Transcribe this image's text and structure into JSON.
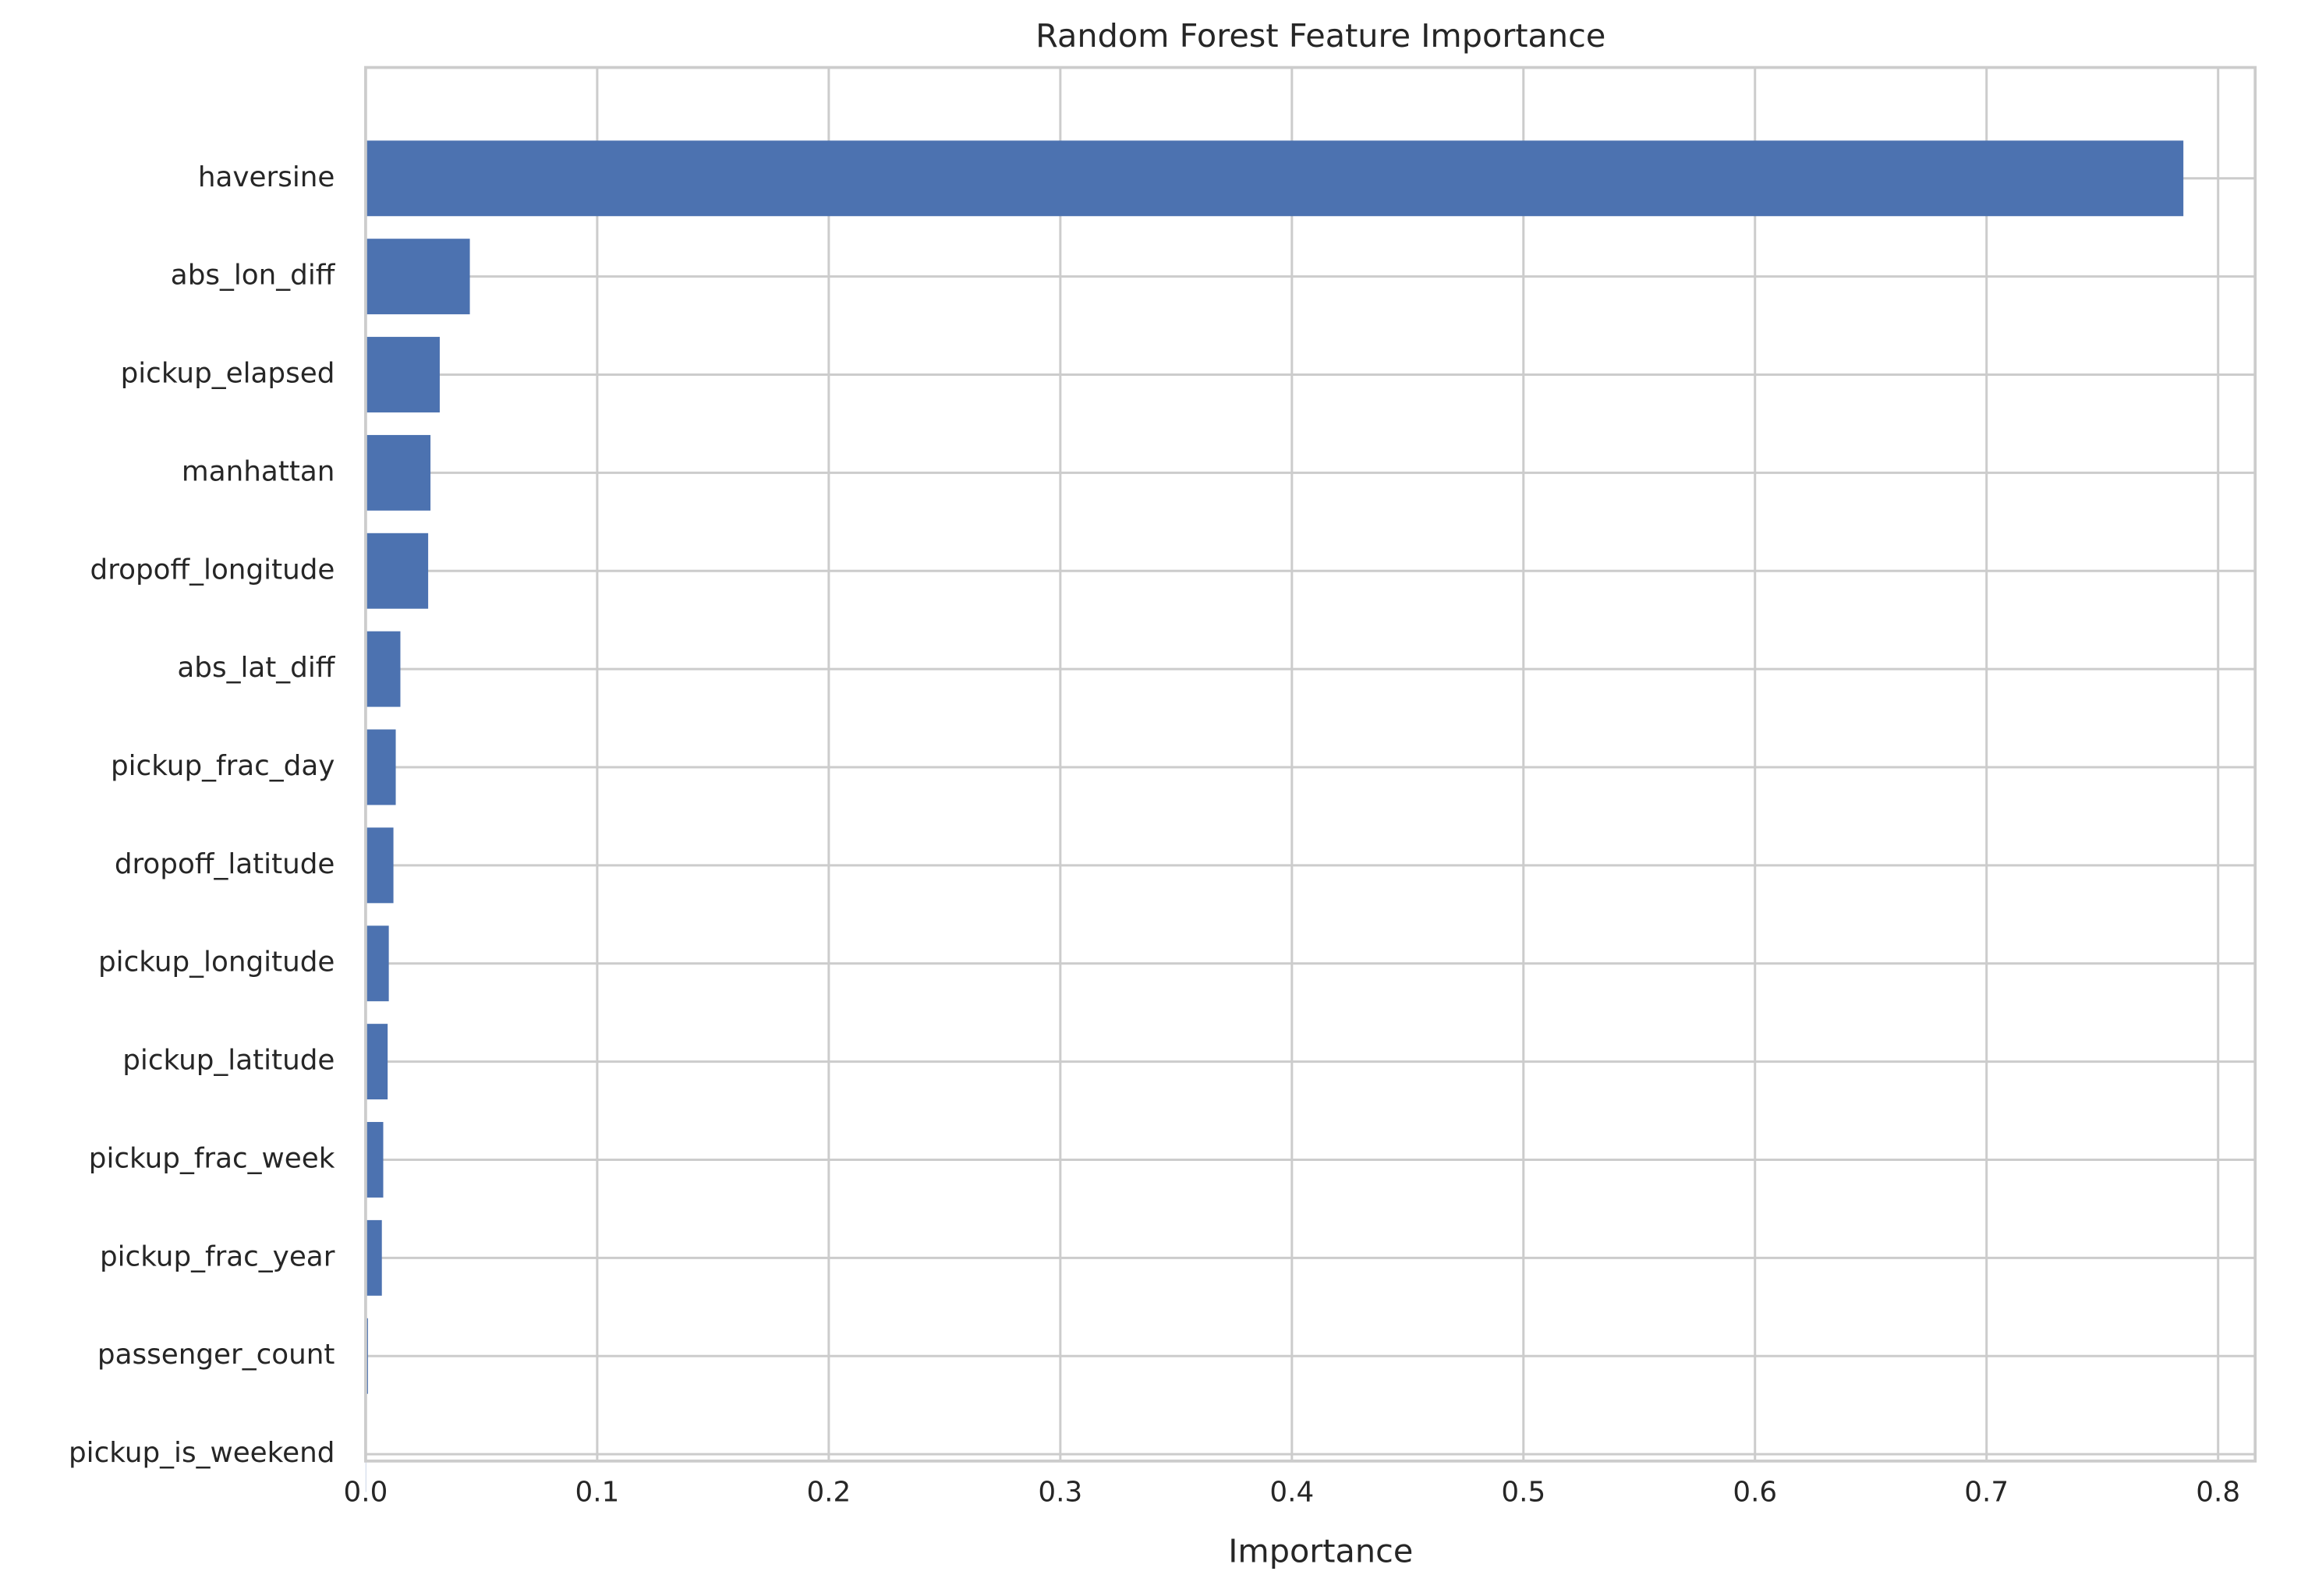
{
  "chart_data": {
    "type": "barh",
    "title": "Random Forest Feature Importance",
    "x_label": "Importance",
    "categories": [
      "haversine",
      "abs_lon_diff",
      "pickup_elapsed",
      "manhattan",
      "dropoff_longitude",
      "abs_lat_diff",
      "pickup_frac_day",
      "dropoff_latitude",
      "pickup_longitude",
      "pickup_latitude",
      "pickup_frac_week",
      "pickup_frac_year",
      "passenger_count",
      "pickup_is_weekend"
    ],
    "values": [
      0.785,
      0.045,
      0.032,
      0.028,
      0.027,
      0.015,
      0.013,
      0.012,
      0.01,
      0.0095,
      0.0076,
      0.007,
      0.001,
      0.0001
    ],
    "color": "#4c72b0",
    "xlim": [
      0,
      0.816
    ],
    "xticks": [
      {
        "value": 0,
        "label": "0.0"
      },
      0.1,
      0.2,
      0.3,
      0.4,
      0.5,
      0.6,
      0.7,
      0.8
    ],
    "grid": true
  }
}
